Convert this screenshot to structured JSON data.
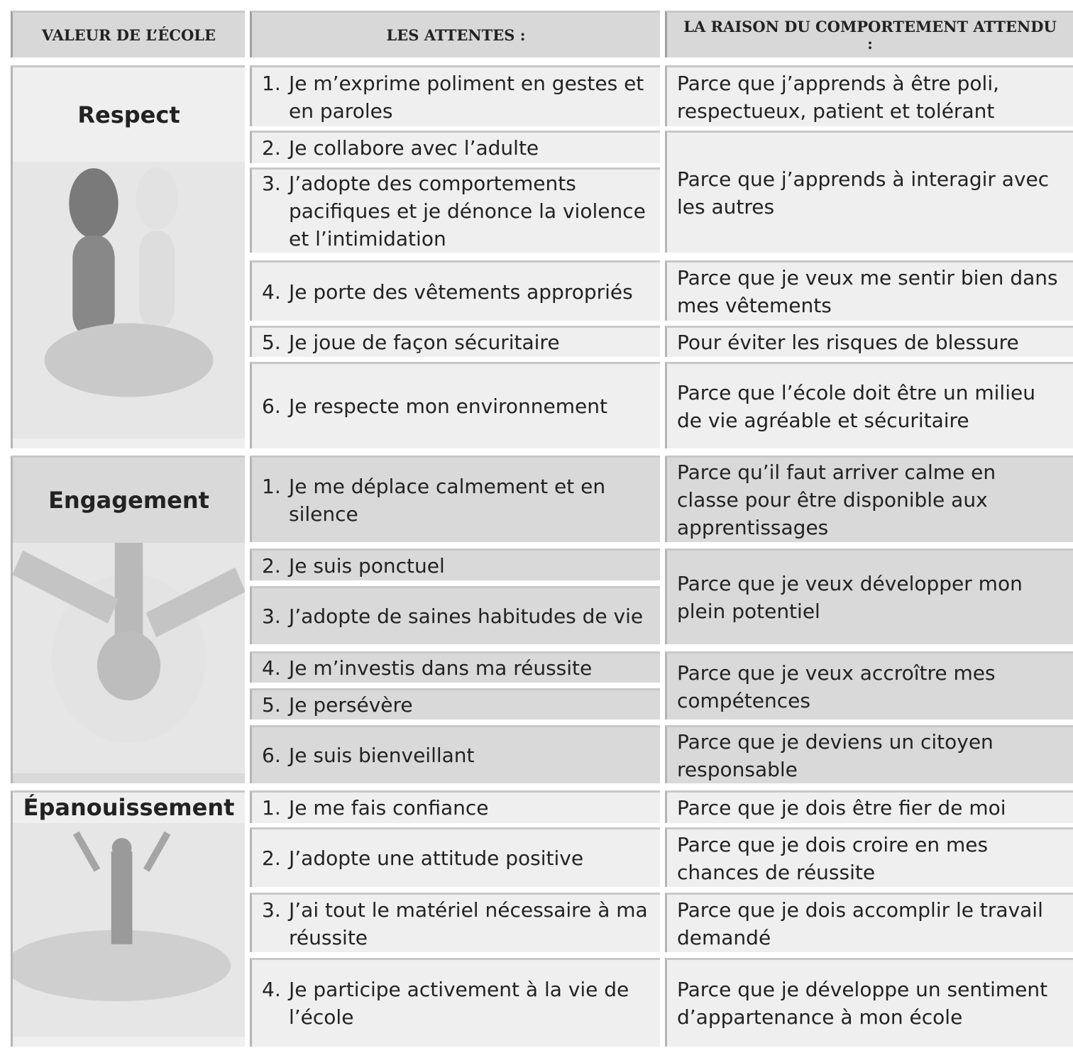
{
  "table": {
    "headers": [
      "VALEUR DE L’ÉCOLE",
      "LES ATTENTES :",
      "LA RAISON DU COMPORTEMENT ATTENDU :"
    ],
    "sections": [
      {
        "value": "Respect",
        "groups": [
          {
            "expectations": [
              {
                "number": "1.",
                "text": "Je m’exprime poliment en gestes et en paroles"
              }
            ],
            "reason": "Parce que j’apprends à être poli, respectueux, patient et tolérant"
          },
          {
            "expectations": [
              {
                "number": "2.",
                "text": "Je collabore avec l’adulte"
              },
              {
                "number": "3.",
                "text": "J’adopte des comportements pacifiques et je dénonce la violence et l’intimidation"
              }
            ],
            "reason": "Parce que j’apprends à interagir avec les autres"
          },
          {
            "expectations": [
              {
                "number": "4.",
                "text": "Je porte des vêtements appropriés"
              }
            ],
            "reason": "Parce que je veux me sentir bien dans mes vêtements"
          },
          {
            "expectations": [
              {
                "number": "5.",
                "text": "Je joue de façon sécuritaire"
              }
            ],
            "reason": "Pour éviter les risques de blessure"
          },
          {
            "expectations": [
              {
                "number": "6.",
                "text": "Je respecte mon environnement"
              }
            ],
            "reason": "Parce que l’école doit être un milieu de vie agréable et sécuritaire"
          }
        ]
      },
      {
        "value": "Engagement",
        "groups": [
          {
            "expectations": [
              {
                "number": "1.",
                "text": "Je me déplace calmement et en silence"
              }
            ],
            "reason": "Parce qu’il faut arriver calme en classe pour être disponible aux apprentissages"
          },
          {
            "expectations": [
              {
                "number": "2.",
                "text": "Je suis ponctuel"
              },
              {
                "number": "3.",
                "text": "J’adopte de saines habitudes de vie"
              }
            ],
            "reason": "Parce que je veux développer mon plein potentiel"
          },
          {
            "expectations": [
              {
                "number": "4.",
                "text": "Je m’investis dans ma réussite"
              },
              {
                "number": "5.",
                "text": "Je persévère"
              }
            ],
            "reason": "Parce que je veux accroître mes compétences"
          },
          {
            "expectations": [
              {
                "number": "6.",
                "text": "Je suis bienveillant"
              }
            ],
            "reason": "Parce que je deviens un citoyen responsable"
          }
        ]
      },
      {
        "value": "Épanouissement",
        "groups": [
          {
            "expectations": [
              {
                "number": "1.",
                "text": "Je me fais confiance"
              }
            ],
            "reason": "Parce que je dois être fier de moi"
          },
          {
            "expectations": [
              {
                "number": "2.",
                "text": "J’adopte une attitude positive"
              }
            ],
            "reason": "Parce que je dois croire en mes chances de réussite"
          },
          {
            "expectations": [
              {
                "number": "3.",
                "text": "J’ai tout le matériel nécessaire à ma réussite"
              }
            ],
            "reason": "Parce que je dois accomplir le travail demandé"
          },
          {
            "expectations": [
              {
                "number": "4.",
                "text": "Je participe activement à la vie de l’école"
              }
            ],
            "reason": "Parce que je développe un sentiment d’appartenance à mon école"
          }
        ]
      }
    ]
  }
}
